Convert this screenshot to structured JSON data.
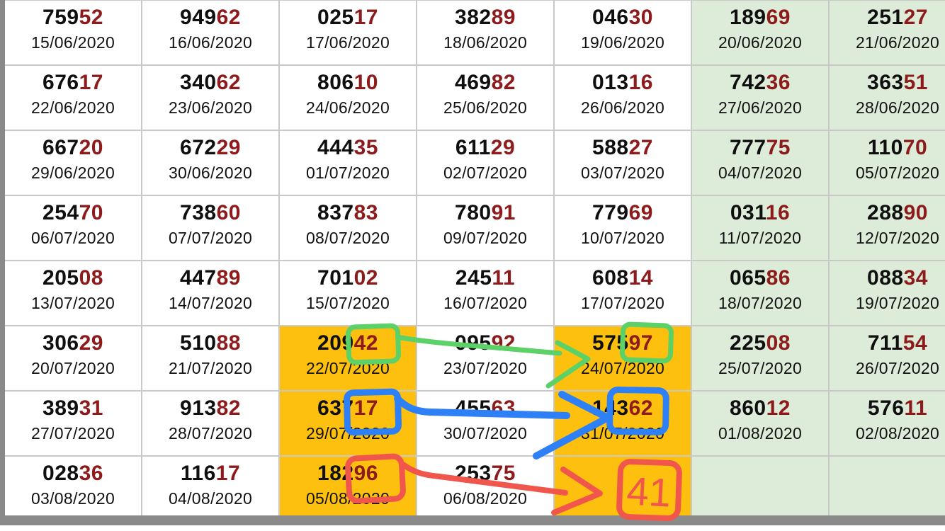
{
  "palette": {
    "page_bg": "#ffffff",
    "weekend_bg": "#ddecd8",
    "highlight_bg": "#fdc00e",
    "number_black": "#0f0f0f",
    "number_red": "#8e1b1b",
    "date_color": "#111111",
    "grid_line": "#c9c9c9",
    "edge_gray": "#8a8a8a"
  },
  "table": {
    "rows": [
      [
        {
          "num": "75952",
          "date": "15/06/2020",
          "bg": "plain"
        },
        {
          "num": "94962",
          "date": "16/06/2020",
          "bg": "plain"
        },
        {
          "num": "02517",
          "date": "17/06/2020",
          "bg": "plain"
        },
        {
          "num": "38289",
          "date": "18/06/2020",
          "bg": "plain"
        },
        {
          "num": "04630",
          "date": "19/06/2020",
          "bg": "plain"
        },
        {
          "num": "18969",
          "date": "20/06/2020",
          "bg": "weekend"
        },
        {
          "num": "25127",
          "date": "21/06/2020",
          "bg": "weekend"
        }
      ],
      [
        {
          "num": "67617",
          "date": "22/06/2020",
          "bg": "plain"
        },
        {
          "num": "34062",
          "date": "23/06/2020",
          "bg": "plain"
        },
        {
          "num": "80610",
          "date": "24/06/2020",
          "bg": "plain"
        },
        {
          "num": "46982",
          "date": "25/06/2020",
          "bg": "plain"
        },
        {
          "num": "01316",
          "date": "26/06/2020",
          "bg": "plain"
        },
        {
          "num": "74236",
          "date": "27/06/2020",
          "bg": "weekend"
        },
        {
          "num": "36351",
          "date": "28/06/2020",
          "bg": "weekend"
        }
      ],
      [
        {
          "num": "66720",
          "date": "29/06/2020",
          "bg": "plain"
        },
        {
          "num": "67229",
          "date": "30/06/2020",
          "bg": "plain"
        },
        {
          "num": "44435",
          "date": "01/07/2020",
          "bg": "plain"
        },
        {
          "num": "61129",
          "date": "02/07/2020",
          "bg": "plain"
        },
        {
          "num": "58827",
          "date": "03/07/2020",
          "bg": "plain"
        },
        {
          "num": "77775",
          "date": "04/07/2020",
          "bg": "weekend"
        },
        {
          "num": "11070",
          "date": "05/07/2020",
          "bg": "weekend"
        }
      ],
      [
        {
          "num": "25470",
          "date": "06/07/2020",
          "bg": "plain"
        },
        {
          "num": "73860",
          "date": "07/07/2020",
          "bg": "plain"
        },
        {
          "num": "83783",
          "date": "08/07/2020",
          "bg": "plain"
        },
        {
          "num": "78091",
          "date": "09/07/2020",
          "bg": "plain"
        },
        {
          "num": "77969",
          "date": "10/07/2020",
          "bg": "plain"
        },
        {
          "num": "03116",
          "date": "11/07/2020",
          "bg": "weekend"
        },
        {
          "num": "28890",
          "date": "12/07/2020",
          "bg": "weekend"
        }
      ],
      [
        {
          "num": "20508",
          "date": "13/07/2020",
          "bg": "plain"
        },
        {
          "num": "44789",
          "date": "14/07/2020",
          "bg": "plain"
        },
        {
          "num": "70102",
          "date": "15/07/2020",
          "bg": "plain"
        },
        {
          "num": "24511",
          "date": "16/07/2020",
          "bg": "plain"
        },
        {
          "num": "60814",
          "date": "17/07/2020",
          "bg": "plain"
        },
        {
          "num": "06586",
          "date": "18/07/2020",
          "bg": "weekend"
        },
        {
          "num": "08834",
          "date": "19/07/2020",
          "bg": "weekend"
        }
      ],
      [
        {
          "num": "30629",
          "date": "20/07/2020",
          "bg": "plain"
        },
        {
          "num": "51088",
          "date": "21/07/2020",
          "bg": "plain"
        },
        {
          "num": "20942",
          "date": "22/07/2020",
          "bg": "highlight"
        },
        {
          "num": "09592",
          "date": "23/07/2020",
          "bg": "plain"
        },
        {
          "num": "57597",
          "date": "24/07/2020",
          "bg": "highlight"
        },
        {
          "num": "22508",
          "date": "25/07/2020",
          "bg": "weekend"
        },
        {
          "num": "71154",
          "date": "26/07/2020",
          "bg": "weekend"
        }
      ],
      [
        {
          "num": "38931",
          "date": "27/07/2020",
          "bg": "plain"
        },
        {
          "num": "91382",
          "date": "28/07/2020",
          "bg": "plain"
        },
        {
          "num": "63717",
          "date": "29/07/2020",
          "bg": "highlight"
        },
        {
          "num": "45563",
          "date": "30/07/2020",
          "bg": "plain"
        },
        {
          "num": "14362",
          "date": "31/07/2020",
          "bg": "highlight"
        },
        {
          "num": "86012",
          "date": "01/08/2020",
          "bg": "weekend"
        },
        {
          "num": "57611",
          "date": "02/08/2020",
          "bg": "weekend"
        }
      ],
      [
        {
          "num": "02836",
          "date": "03/08/2020",
          "bg": "plain"
        },
        {
          "num": "11617",
          "date": "04/08/2020",
          "bg": "plain"
        },
        {
          "num": "18296",
          "date": "05/08/2020",
          "bg": "highlight"
        },
        {
          "num": "25375",
          "date": "06/08/2020",
          "bg": "plain"
        },
        {
          "num": "",
          "date": "",
          "bg": "highlight"
        },
        {
          "num": "",
          "date": "",
          "bg": "weekend"
        },
        {
          "num": "",
          "date": "",
          "bg": "weekend"
        }
      ]
    ]
  },
  "annotations": {
    "green": {
      "color": "#5bd168",
      "source_digits": "42",
      "target_digits": "97"
    },
    "blue": {
      "color": "#2e80f6",
      "source_digits": "17",
      "target_digits": "62"
    },
    "red": {
      "color": "#f1564d",
      "source_digits": "96",
      "note_label": "41"
    }
  }
}
